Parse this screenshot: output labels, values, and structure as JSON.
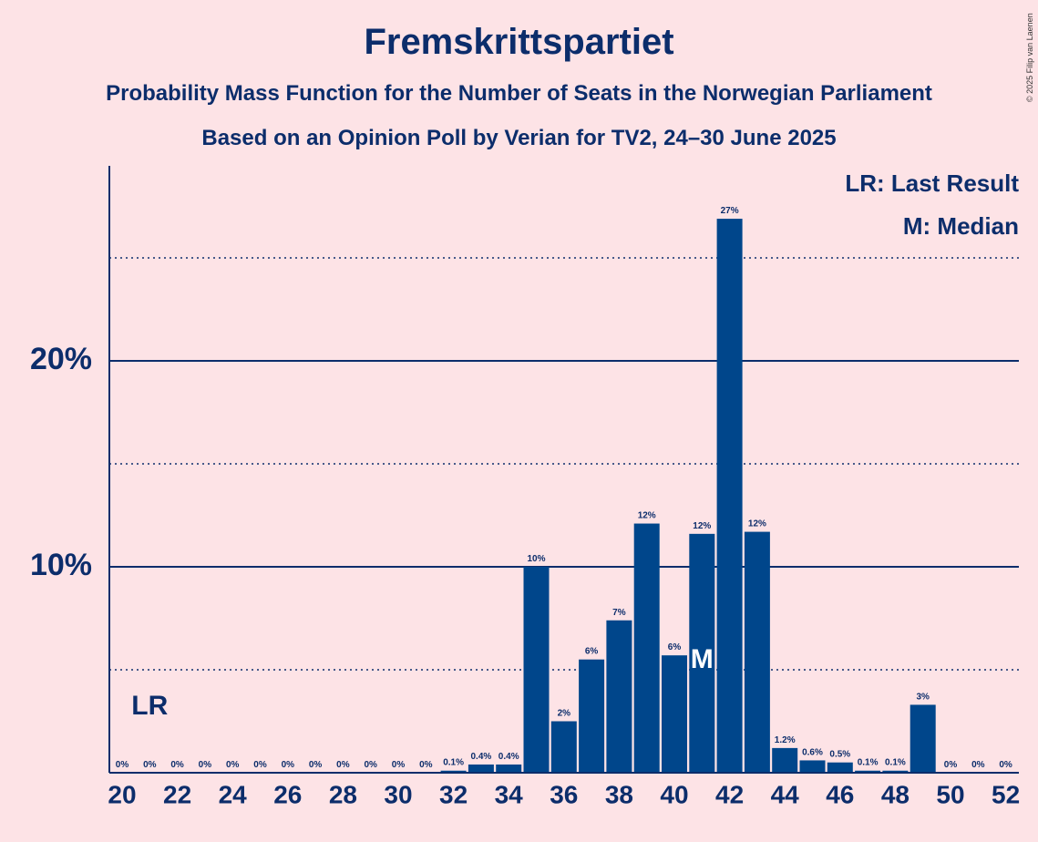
{
  "title": "Fremskrittspartiet",
  "subtitle1": "Probability Mass Function for the Number of Seats in the Norwegian Parliament",
  "subtitle2": "Based on an Opinion Poll by Verian for TV2, 24–30 June 2025",
  "copyright": "© 2025 Filip van Laenen",
  "legend": {
    "lr": "LR: Last Result",
    "m": "M: Median"
  },
  "colors": {
    "bar": "#00468b",
    "background": "#fde3e6",
    "text": "#0c2d6b"
  },
  "chart_data": {
    "type": "bar",
    "x": [
      20,
      21,
      22,
      23,
      24,
      25,
      26,
      27,
      28,
      29,
      30,
      31,
      32,
      33,
      34,
      35,
      36,
      37,
      38,
      39,
      40,
      41,
      42,
      43,
      44,
      45,
      46,
      47,
      48,
      49,
      50,
      51,
      52
    ],
    "values": [
      0,
      0,
      0,
      0,
      0,
      0,
      0,
      0,
      0,
      0,
      0,
      0,
      0.1,
      0.4,
      0.4,
      10,
      2.5,
      5.5,
      7.4,
      12.1,
      5.7,
      11.6,
      26.9,
      11.7,
      1.2,
      0.6,
      0.5,
      0.1,
      0.1,
      3.3,
      0,
      0,
      0
    ],
    "data_labels": [
      "0%",
      "0%",
      "0%",
      "0%",
      "0%",
      "0%",
      "0%",
      "0%",
      "0%",
      "0%",
      "0%",
      "0%",
      "0.1%",
      "0.4%",
      "0.4%",
      "10%",
      "2%",
      "6%",
      "7%",
      "12%",
      "6%",
      "12%",
      "27%",
      "12%",
      "1.2%",
      "0.6%",
      "0.5%",
      "0.1%",
      "0.1%",
      "3%",
      "0%",
      "0%",
      "0%"
    ],
    "x_ticks": [
      "20",
      "22",
      "24",
      "26",
      "28",
      "30",
      "32",
      "34",
      "36",
      "38",
      "40",
      "42",
      "44",
      "46",
      "48",
      "50",
      "52"
    ],
    "y_ticks": [
      "10%",
      "20%"
    ],
    "y_tick_values": [
      10,
      20
    ],
    "ylim": [
      0,
      29.5
    ],
    "last_result_seat": 21,
    "last_result_label": "LR",
    "median_seat": 41,
    "median_label": "M",
    "grid": "solid major lines at 10% and 20%, dotted minor lines at 5%, 15% and 25%"
  }
}
